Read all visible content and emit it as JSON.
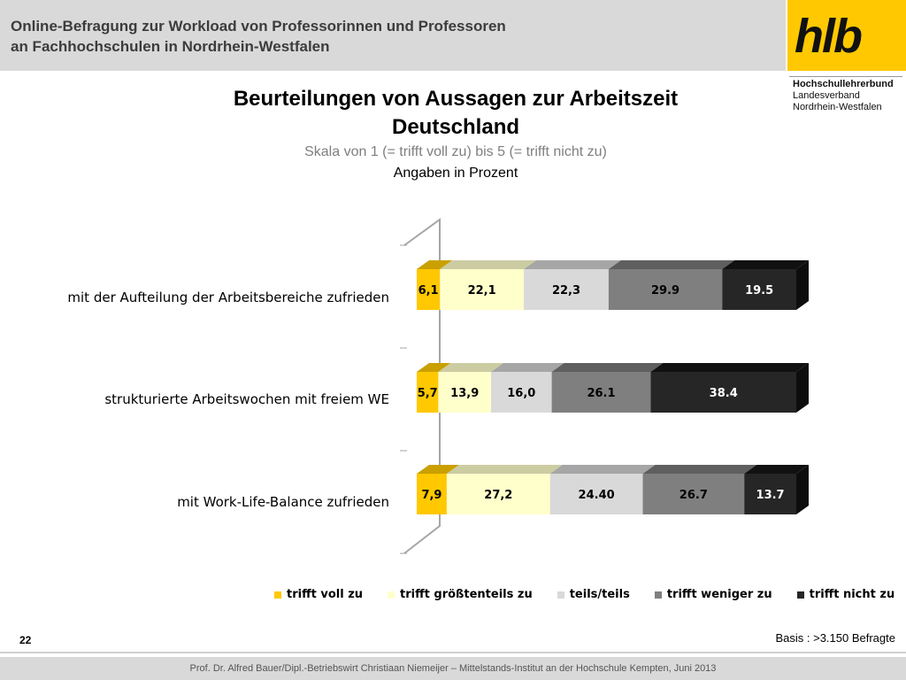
{
  "header": {
    "line1": "Online-Befragung  zur  Workload von Professorinnen und Professoren",
    "line2": "an Fachhochschulen in Nordrhein-Westfalen"
  },
  "logo": {
    "text": "hlb",
    "org_line1": "Hochschullehrerbund",
    "org_line2": "Landesverband",
    "org_line3": "Nordrhein-Westfalen"
  },
  "colors": {
    "header_band": "#d9d9d9",
    "logo_yellow": "#ffc800"
  },
  "chart_data": {
    "type": "bar",
    "orientation": "horizontal",
    "stacked": true,
    "percent": true,
    "title": "Beurteilungen von Aussagen zur Arbeitszeit Deutschland",
    "title_line1": "Beurteilungen von Aussagen zur Arbeitszeit",
    "title_line2": "Deutschland",
    "subtitle": "Skala von 1 (= trifft voll zu) bis 5 (= trifft nicht zu)",
    "subtitle2": "Angaben in Prozent",
    "categories": [
      "mit der Aufteilung der Arbeitsbereiche zufrieden",
      "strukturierte Arbeitswochen mit freiem WE",
      "mit Work-Life-Balance zufrieden"
    ],
    "series": [
      {
        "name": "trifft voll zu",
        "color": "#ffc800",
        "top_color": "#caa000",
        "text_color": "#000000",
        "values": [
          6.1,
          5.7,
          7.9
        ],
        "labels": [
          "6,1",
          "5,7",
          "7,9"
        ]
      },
      {
        "name": "trifft größtenteils zu",
        "color": "#ffffcc",
        "top_color": "#cccca3",
        "text_color": "#000000",
        "values": [
          22.1,
          13.9,
          27.2
        ],
        "labels": [
          "22,1",
          "13,9",
          "27,2"
        ]
      },
      {
        "name": "teils/teils",
        "color": "#d9d9d9",
        "top_color": "#a6a6a6",
        "text_color": "#000000",
        "values": [
          22.3,
          16.0,
          24.4
        ],
        "labels": [
          "22,3",
          "16,0",
          "24.40"
        ]
      },
      {
        "name": "trifft weniger zu",
        "color": "#7f7f7f",
        "top_color": "#5f5f5f",
        "text_color": "#000000",
        "values": [
          29.9,
          26.1,
          26.7
        ],
        "labels": [
          "29.9",
          "26.1",
          "26.7"
        ]
      },
      {
        "name": "trifft nicht zu",
        "color": "#262626",
        "top_color": "#111111",
        "text_color": "#ffffff",
        "values": [
          19.5,
          38.4,
          13.7
        ],
        "labels": [
          "19.5",
          "38.4",
          "13.7"
        ]
      }
    ],
    "xlim": [
      0,
      100
    ],
    "legend": "bottom",
    "grid": false
  },
  "footer": {
    "page_number": "22",
    "basis": "Basis : >3.150 Befragte",
    "credits": "Prof. Dr. Alfred Bauer/Dipl.-Betriebswirt Christiaan Niemeijer – Mittelstands-Institut an der Hochschule Kempten, Juni 2013"
  }
}
